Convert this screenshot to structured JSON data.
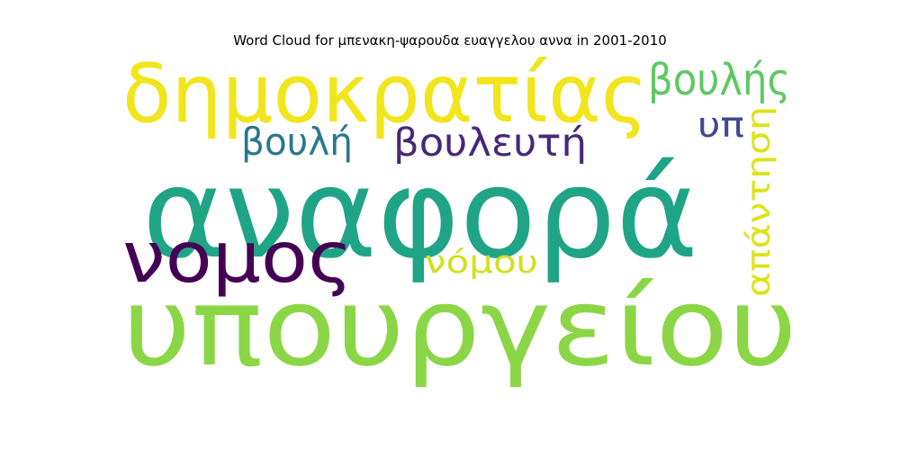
{
  "chart_data": {
    "type": "wordcloud",
    "title": "Word Cloud for μπενακη-ψαρουδα ευαγγελου αννα in 2001-2010",
    "words": [
      {
        "text": "υπουργείου",
        "weight": 100,
        "color": "#8bd646"
      },
      {
        "text": "αναφορά",
        "weight": 95,
        "color": "#20a486"
      },
      {
        "text": "δημοκρατίας",
        "weight": 70,
        "color": "#f1e51d"
      },
      {
        "text": "νομος",
        "weight": 60,
        "color": "#440154"
      },
      {
        "text": "βουλής",
        "weight": 35,
        "color": "#5ec962"
      },
      {
        "text": "βουλευτή",
        "weight": 32,
        "color": "#482878"
      },
      {
        "text": "βουλή",
        "weight": 28,
        "color": "#29788e"
      },
      {
        "text": "υπ",
        "weight": 26,
        "color": "#3e4a89"
      },
      {
        "text": "απάντηση",
        "weight": 24,
        "color": "#dde318"
      },
      {
        "text": "νόμου",
        "weight": 22,
        "color": "#d0e11c"
      }
    ]
  }
}
